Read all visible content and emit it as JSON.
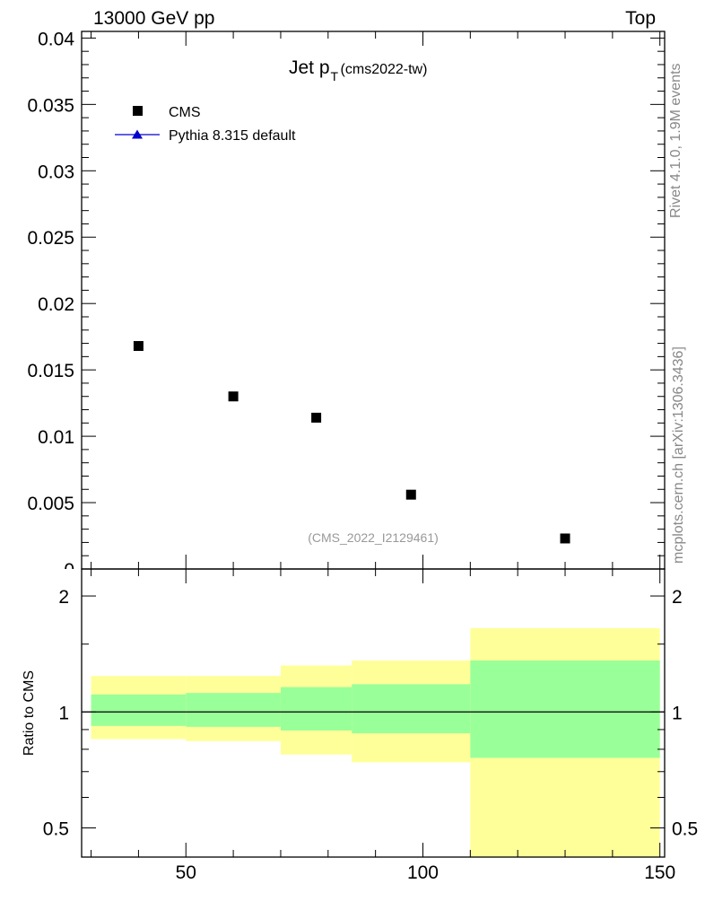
{
  "header": {
    "energy_label": "13000 GeV pp",
    "process_label": "Top"
  },
  "side_labels": {
    "rivet": "Rivet 4.1.0,  1.9M events",
    "source": "mcplots.cern.ch [arXiv:1306.3436]"
  },
  "chart_data": [
    {
      "type": "scatter",
      "title_main": "Jet p",
      "title_sub": "T",
      "title_tag": "(cms2022-tw)",
      "analysis_id": "(CMS_2022_I2129461)",
      "xlabel": "",
      "ylabel": "",
      "xlim": [
        28,
        151
      ],
      "ylim": [
        0,
        0.0405
      ],
      "grid": false,
      "legend_position": "top-left",
      "legend": [
        {
          "label": "CMS",
          "marker": "square",
          "color": "#000000"
        },
        {
          "label": "Pythia 8.315 default",
          "marker": "triangle",
          "color": "#0000cc"
        }
      ],
      "y_ticks": [
        "0.04",
        "0.035",
        "0.03",
        "0.025",
        "0.02",
        "0.015",
        "0.01",
        "0.005",
        "0"
      ],
      "y_tick_values": [
        0.04,
        0.035,
        0.03,
        0.025,
        0.02,
        0.015,
        0.01,
        0.005,
        0
      ],
      "series": [
        {
          "name": "CMS",
          "x": [
            40,
            60,
            77.5,
            97.5,
            130
          ],
          "y": [
            0.0168,
            0.013,
            0.0114,
            0.0056,
            0.0023
          ]
        }
      ]
    },
    {
      "type": "area",
      "ylabel": "Ratio to CMS",
      "xlim": [
        28,
        151
      ],
      "ylim": [
        0.42,
        2.35
      ],
      "y_scale": "log",
      "x_ticks": [
        "50",
        "100",
        "150"
      ],
      "x_tick_values": [
        50,
        100,
        150
      ],
      "y_ticks": [
        "2",
        "1",
        "0.5"
      ],
      "y_tick_values": [
        2,
        1,
        0.5
      ],
      "reference_line": 1,
      "bins": [
        {
          "x_low": 30,
          "x_high": 50,
          "inner_low": 0.92,
          "inner_high": 1.11,
          "outer_low": 0.85,
          "outer_high": 1.24
        },
        {
          "x_low": 50,
          "x_high": 70,
          "inner_low": 0.915,
          "inner_high": 1.12,
          "outer_low": 0.84,
          "outer_high": 1.24
        },
        {
          "x_low": 70,
          "x_high": 85,
          "inner_low": 0.895,
          "inner_high": 1.16,
          "outer_low": 0.775,
          "outer_high": 1.32
        },
        {
          "x_low": 85,
          "x_high": 110,
          "inner_low": 0.88,
          "inner_high": 1.18,
          "outer_low": 0.74,
          "outer_high": 1.36
        },
        {
          "x_low": 110,
          "x_high": 150,
          "inner_low": 0.76,
          "inner_high": 1.36,
          "outer_low": 0.42,
          "outer_high": 1.65
        }
      ],
      "band_colors": {
        "inner": "#99ff99",
        "outer": "#ffff99"
      }
    }
  ]
}
